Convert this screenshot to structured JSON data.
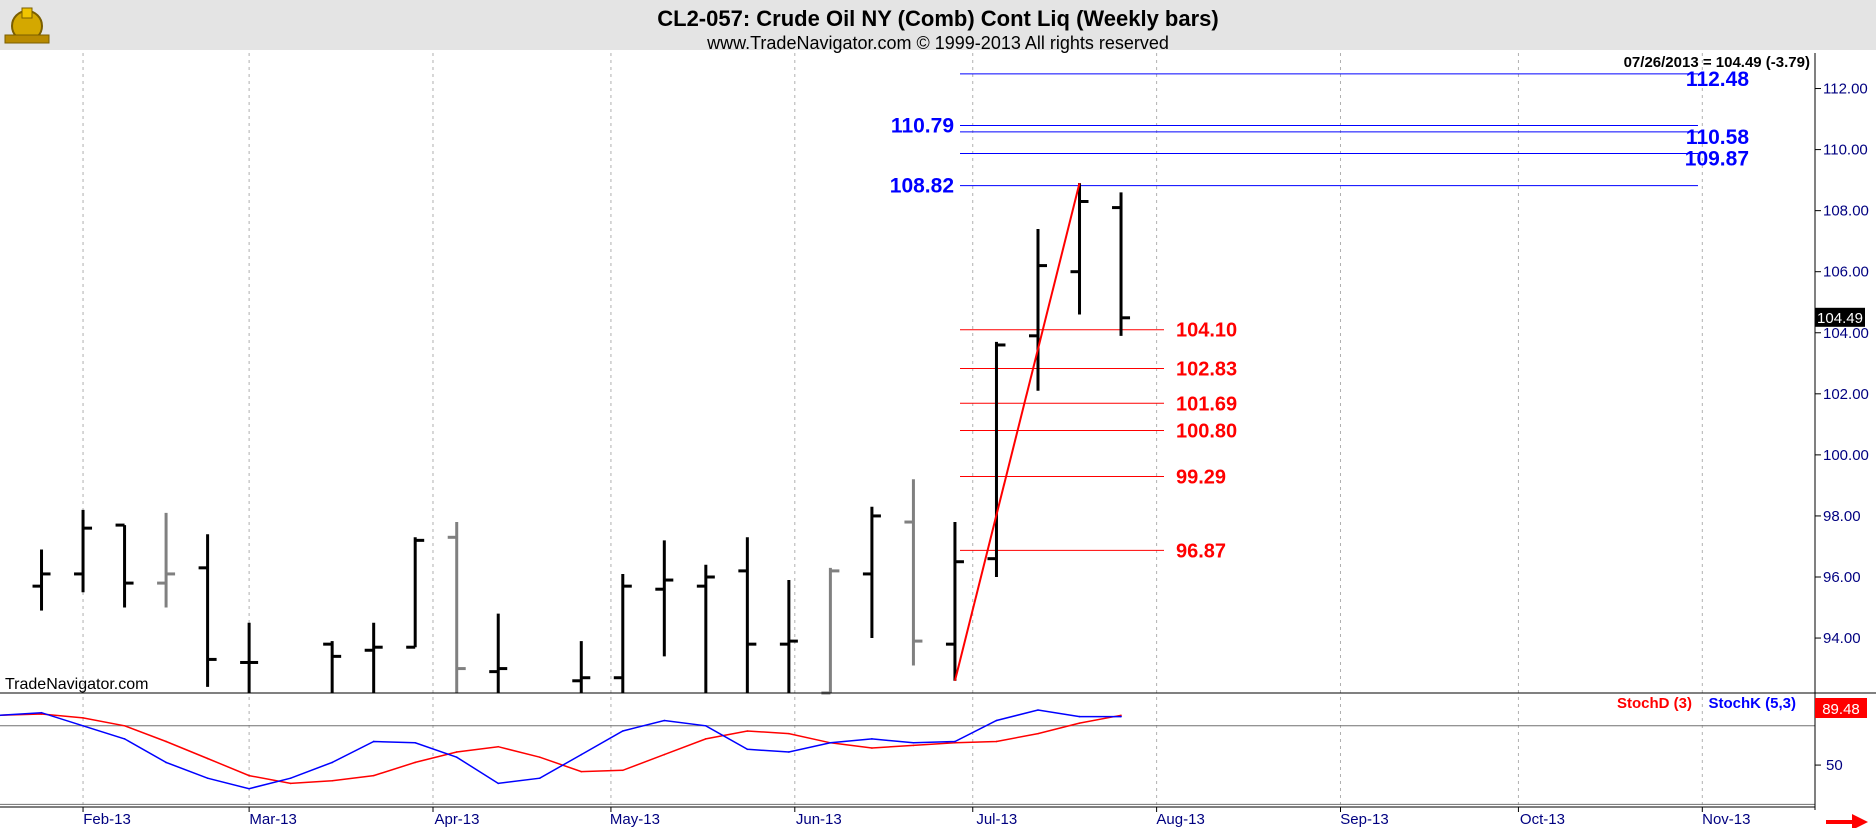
{
  "header": {
    "title": "CL2-057:  Crude Oil NY (Comb) Cont Liq  (Weekly bars)",
    "subtitle": "www.TradeNavigator.com © 1999-2013 All rights reserved",
    "last_bar_label": "07/26/2013 = 104.49 (-3.79)",
    "watermark": "TradeNavigator.com"
  },
  "colors": {
    "blue_levels": "#0000ff",
    "red_levels": "#ff0000",
    "bar_black": "#000000",
    "bar_gray": "#808080",
    "stoch_d": "#ff0000",
    "stoch_k": "#0000ff",
    "axis_text": "#000080",
    "header_bg": "#e4e4e4"
  },
  "chart_data": [
    {
      "type": "ohlc",
      "x_axis": {
        "type": "date",
        "min": "2013-01-18",
        "max": "2013-11-20",
        "tick_labels": [
          {
            "date": "2013-02-01",
            "label": "Feb-13"
          },
          {
            "date": "2013-03-01",
            "label": "Mar-13"
          },
          {
            "date": "2013-04-01",
            "label": "Apr-13"
          },
          {
            "date": "2013-05-01",
            "label": "May-13"
          },
          {
            "date": "2013-06-01",
            "label": "Jun-13"
          },
          {
            "date": "2013-07-01",
            "label": "Jul-13"
          },
          {
            "date": "2013-08-01",
            "label": "Aug-13"
          },
          {
            "date": "2013-09-01",
            "label": "Sep-13"
          },
          {
            "date": "2013-10-01",
            "label": "Oct-13"
          },
          {
            "date": "2013-11-01",
            "label": "Nov-13"
          }
        ]
      },
      "y_axis": {
        "ylim": [
          92.2,
          113.0
        ],
        "ticks": [
          94,
          96,
          98,
          100,
          102,
          104,
          106,
          108,
          110,
          112
        ],
        "tick_labels": [
          "94.00",
          "96.00",
          "98.00",
          "100.00",
          "102.00",
          "104.00",
          "106.00",
          "108.00",
          "110.00",
          "112.00"
        ],
        "grid_vertical": true
      },
      "bars": [
        {
          "date": "2013-01-25",
          "open": 95.7,
          "high": 96.9,
          "low": 94.9,
          "close": 96.1,
          "color": "black"
        },
        {
          "date": "2013-02-01",
          "open": 96.1,
          "high": 98.2,
          "low": 95.5,
          "close": 97.6,
          "color": "black"
        },
        {
          "date": "2013-02-08",
          "open": 97.7,
          "high": 97.7,
          "low": 95.0,
          "close": 95.8,
          "color": "black"
        },
        {
          "date": "2013-02-15",
          "open": 95.8,
          "high": 98.1,
          "low": 95.0,
          "close": 96.1,
          "color": "gray"
        },
        {
          "date": "2013-02-22",
          "open": 96.3,
          "high": 97.4,
          "low": 92.4,
          "close": 93.3,
          "color": "black"
        },
        {
          "date": "2013-03-01",
          "open": 93.2,
          "high": 94.5,
          "low": 92.2,
          "close": 93.2,
          "color": "black"
        },
        {
          "date": "2013-03-15",
          "open": 93.8,
          "high": 93.9,
          "low": 92.2,
          "close": 93.4,
          "color": "black"
        },
        {
          "date": "2013-03-22",
          "open": 93.6,
          "high": 94.5,
          "low": 92.2,
          "close": 93.7,
          "color": "black"
        },
        {
          "date": "2013-03-29",
          "open": 93.7,
          "high": 97.3,
          "low": 93.7,
          "close": 97.2,
          "color": "black"
        },
        {
          "date": "2013-04-05",
          "open": 97.3,
          "high": 97.8,
          "low": 92.2,
          "close": 93.0,
          "color": "gray"
        },
        {
          "date": "2013-04-12",
          "open": 92.9,
          "high": 94.8,
          "low": 92.2,
          "close": 93.0,
          "color": "black"
        },
        {
          "date": "2013-04-26",
          "open": 92.6,
          "high": 93.9,
          "low": 92.2,
          "close": 92.7,
          "color": "black"
        },
        {
          "date": "2013-05-03",
          "open": 92.7,
          "high": 96.1,
          "low": 92.2,
          "close": 95.7,
          "color": "black"
        },
        {
          "date": "2013-05-10",
          "open": 95.6,
          "high": 97.2,
          "low": 93.4,
          "close": 95.9,
          "color": "black"
        },
        {
          "date": "2013-05-17",
          "open": 95.7,
          "high": 96.4,
          "low": 92.2,
          "close": 96.0,
          "color": "black"
        },
        {
          "date": "2013-05-24",
          "open": 96.2,
          "high": 97.3,
          "low": 92.2,
          "close": 93.8,
          "color": "black"
        },
        {
          "date": "2013-05-31",
          "open": 93.8,
          "high": 95.9,
          "low": 92.2,
          "close": 93.9,
          "color": "black"
        },
        {
          "date": "2013-06-07",
          "open": 92.2,
          "high": 96.3,
          "low": 92.2,
          "close": 96.2,
          "color": "gray"
        },
        {
          "date": "2013-06-14",
          "open": 96.1,
          "high": 98.3,
          "low": 94.0,
          "close": 98.0,
          "color": "black"
        },
        {
          "date": "2013-06-21",
          "open": 97.8,
          "high": 99.2,
          "low": 93.1,
          "close": 93.9,
          "color": "gray"
        },
        {
          "date": "2013-06-28",
          "open": 93.8,
          "high": 97.8,
          "low": 92.6,
          "close": 96.5,
          "color": "black"
        },
        {
          "date": "2013-07-05",
          "open": 96.6,
          "high": 103.7,
          "low": 96.0,
          "close": 103.6,
          "color": "black"
        },
        {
          "date": "2013-07-12",
          "open": 103.9,
          "high": 107.4,
          "low": 102.1,
          "close": 106.2,
          "color": "black"
        },
        {
          "date": "2013-07-19",
          "open": 106.0,
          "high": 108.9,
          "low": 104.6,
          "close": 108.3,
          "color": "black"
        },
        {
          "date": "2013-07-26",
          "open": 108.1,
          "high": 108.6,
          "low": 103.9,
          "close": 104.49,
          "color": "black"
        }
      ],
      "trend_line": {
        "from": {
          "date": "2013-06-28",
          "value": 92.6
        },
        "to": {
          "date": "2013-07-19",
          "value": 108.9
        }
      },
      "blue_levels": [
        {
          "value": 112.48,
          "label": "112.48",
          "label_side": "right"
        },
        {
          "value": 110.79,
          "label": "110.79",
          "label_side": "left"
        },
        {
          "value": 110.58,
          "label": "110.58",
          "label_side": "right"
        },
        {
          "value": 109.87,
          "label": "109.87",
          "label_side": "right"
        },
        {
          "value": 108.82,
          "label": "108.82",
          "label_side": "left"
        }
      ],
      "red_levels": [
        {
          "value": 104.1,
          "label": "104.10"
        },
        {
          "value": 102.83,
          "label": "102.83"
        },
        {
          "value": 101.69,
          "label": "101.69"
        },
        {
          "value": 100.8,
          "label": "100.80"
        },
        {
          "value": 99.29,
          "label": "99.29"
        },
        {
          "value": 96.87,
          "label": "96.87"
        }
      ],
      "last_price_tag": "104.49"
    },
    {
      "type": "line",
      "ylim": [
        18,
        105
      ],
      "ticks": [
        50
      ],
      "tick_labels": [
        "50"
      ],
      "reference_lines": [
        80,
        20
      ],
      "legend": {
        "placement": "top-right"
      },
      "series": [
        {
          "name": "StochD (3)",
          "color": "#ff0000",
          "dates": [
            "2013-01-18",
            "2013-01-25",
            "2013-02-01",
            "2013-02-08",
            "2013-02-15",
            "2013-02-22",
            "2013-03-01",
            "2013-03-08",
            "2013-03-15",
            "2013-03-22",
            "2013-03-29",
            "2013-04-05",
            "2013-04-12",
            "2013-04-19",
            "2013-04-26",
            "2013-05-03",
            "2013-05-10",
            "2013-05-17",
            "2013-05-24",
            "2013-05-31",
            "2013-06-07",
            "2013-06-14",
            "2013-06-21",
            "2013-06-28",
            "2013-07-05",
            "2013-07-12",
            "2013-07-19",
            "2013-07-26"
          ],
          "values": [
            88,
            89,
            86,
            80,
            68,
            55,
            42,
            36,
            38,
            42,
            52,
            60,
            64,
            56,
            45,
            46,
            58,
            70,
            76,
            74,
            67,
            63,
            65,
            67,
            68,
            74,
            82,
            88
          ]
        },
        {
          "name": "StochK (5,3)",
          "color": "#0000ff",
          "dates": [
            "2013-01-18",
            "2013-01-25",
            "2013-02-01",
            "2013-02-08",
            "2013-02-15",
            "2013-02-22",
            "2013-03-01",
            "2013-03-08",
            "2013-03-15",
            "2013-03-22",
            "2013-03-29",
            "2013-04-05",
            "2013-04-12",
            "2013-04-19",
            "2013-04-26",
            "2013-05-03",
            "2013-05-10",
            "2013-05-17",
            "2013-05-24",
            "2013-05-31",
            "2013-06-07",
            "2013-06-14",
            "2013-06-21",
            "2013-06-28",
            "2013-07-05",
            "2013-07-12",
            "2013-07-19",
            "2013-07-26"
          ],
          "values": [
            88,
            90,
            80,
            70,
            52,
            40,
            32,
            40,
            52,
            68,
            67,
            56,
            36,
            40,
            58,
            76,
            84,
            80,
            62,
            60,
            67,
            70,
            67,
            68,
            84,
            92,
            87,
            87
          ]
        }
      ],
      "last_value_tag": "89.48"
    }
  ]
}
